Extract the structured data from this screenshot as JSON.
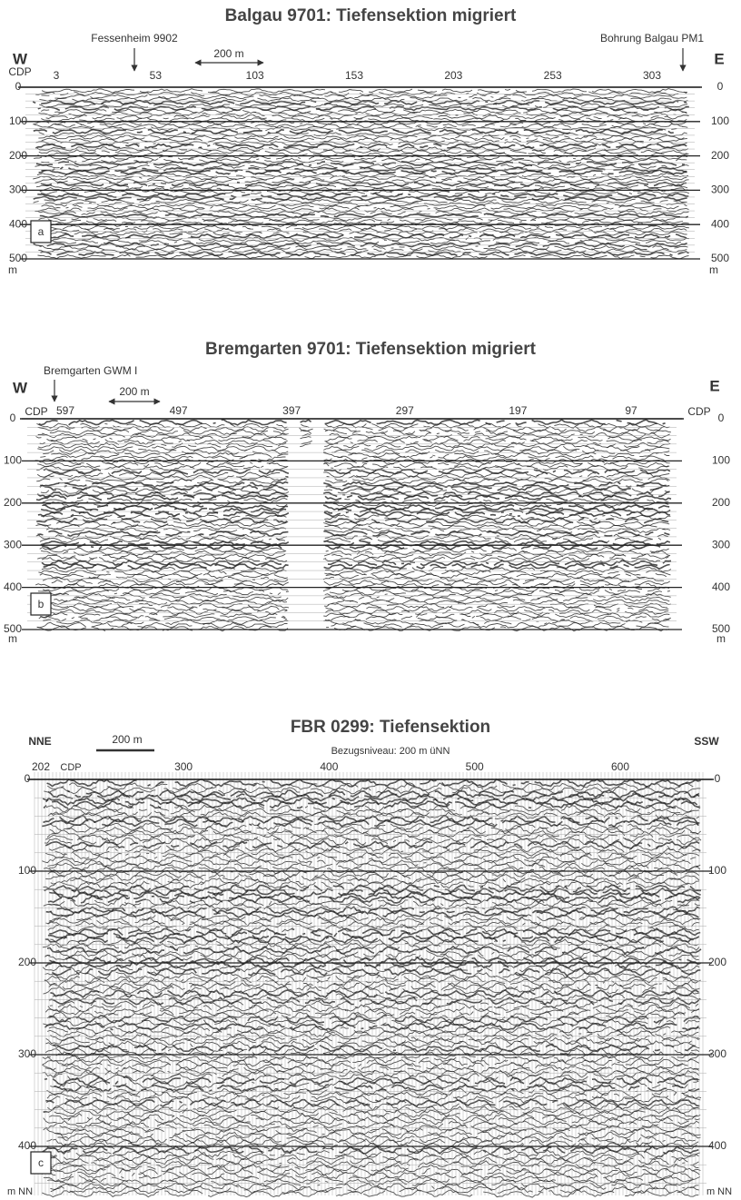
{
  "panels": [
    {
      "title": "Balgau 9701: Tiefensektion migriert",
      "markers": [
        "Fessenheim 9902",
        "Bohrung Balgau PM1"
      ],
      "scale_bar": "200 m",
      "direction_left": "W",
      "direction_right": "E",
      "cdp_label": "CDP",
      "cdp_ticks": [
        3,
        53,
        103,
        153,
        203,
        253,
        303
      ],
      "depth_ticks": [
        0,
        100,
        200,
        300,
        400,
        500
      ],
      "depth_unit": "m",
      "panel_label": "a"
    },
    {
      "title": "Bremgarten 9701: Tiefensektion migriert",
      "markers": [
        "Bremgarten GWM I"
      ],
      "scale_bar": "200 m",
      "direction_left": "W",
      "direction_right": "E",
      "cdp_label": "CDP",
      "cdp_ticks": [
        597,
        497,
        397,
        297,
        197,
        97
      ],
      "depth_ticks": [
        0,
        100,
        200,
        300,
        400,
        500
      ],
      "depth_unit": "m",
      "panel_label": "b"
    },
    {
      "title": "FBR 0299: Tiefensektion",
      "subtitle": "Bezugsniveau: 200 m üNN",
      "scale_bar": "200 m",
      "direction_left": "NNE",
      "direction_right": "SSW",
      "cdp_label": "CDP",
      "cdp_ticks": [
        202,
        300,
        400,
        500,
        600
      ],
      "depth_ticks": [
        0,
        100,
        200,
        300,
        400
      ],
      "depth_unit": "m NN",
      "panel_label": "c"
    }
  ]
}
